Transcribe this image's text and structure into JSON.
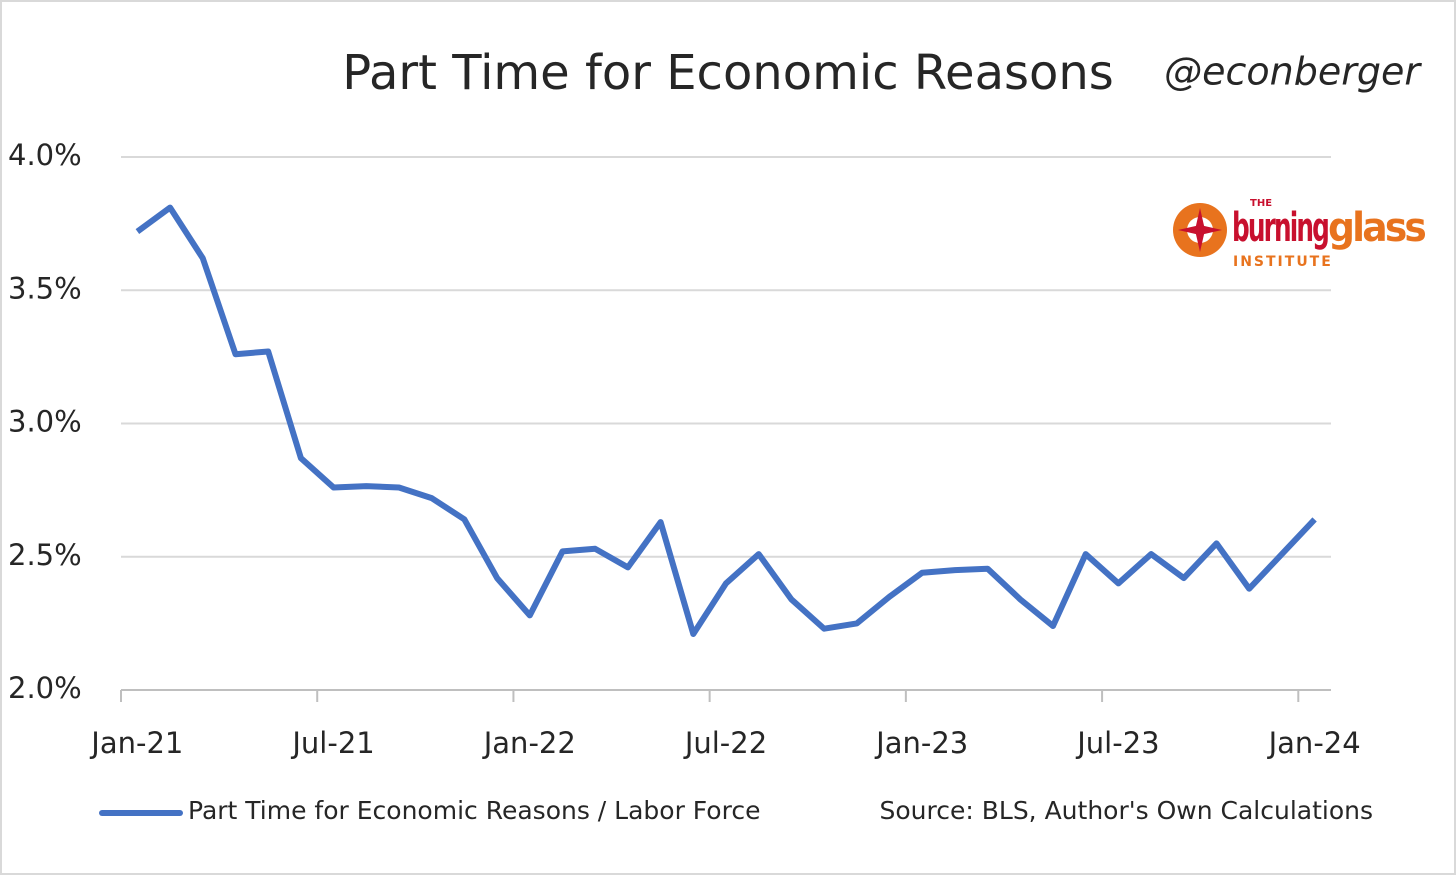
{
  "chart_data": {
    "type": "line",
    "title": "Part Time for Economic Reasons",
    "handle": "@econberger",
    "source": "Source: BLS, Author's Own Calculations",
    "logo": {
      "top": "THE",
      "main_1": "burning",
      "main_2": "glass",
      "bottom": "INSTITUTE"
    },
    "categories": [
      "Jan-21",
      null,
      null,
      null,
      null,
      null,
      "Jul-21",
      null,
      null,
      null,
      null,
      null,
      "Jan-22",
      null,
      null,
      null,
      null,
      null,
      "Jul-22",
      null,
      null,
      null,
      null,
      null,
      "Jan-23",
      null,
      null,
      null,
      null,
      null,
      "Jul-23",
      null,
      null,
      null,
      null,
      null,
      "Jan-24"
    ],
    "series": [
      {
        "name": "Part Time for Economic Reasons / Labor Force",
        "color": "#4472c4",
        "values": [
          3.72,
          3.81,
          3.62,
          3.26,
          3.27,
          2.87,
          2.76,
          2.765,
          2.76,
          2.72,
          2.64,
          2.42,
          2.28,
          2.52,
          2.53,
          2.46,
          2.63,
          2.21,
          2.4,
          2.51,
          2.34,
          2.23,
          2.25,
          2.35,
          2.44,
          2.45,
          2.455,
          2.34,
          2.24,
          2.51,
          2.4,
          2.51,
          2.42,
          2.55,
          2.38,
          2.51,
          2.64
        ]
      }
    ],
    "ylim": [
      2,
      4
    ],
    "yticks": [
      {
        "value": 2,
        "label": "2.0%"
      },
      {
        "value": 2.5,
        "label": "2.5%"
      },
      {
        "value": 3,
        "label": "3.0%"
      },
      {
        "value": 3.5,
        "label": "3.5%"
      },
      {
        "value": 4,
        "label": "4.0%"
      }
    ],
    "grid": true,
    "legend": "bottom"
  }
}
